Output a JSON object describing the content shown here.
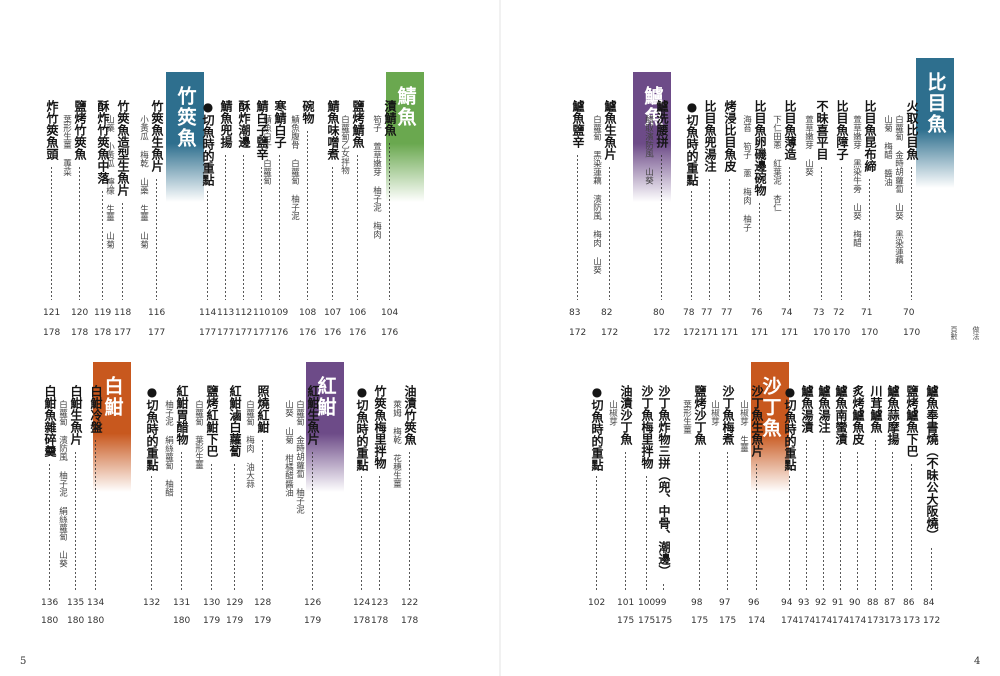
{
  "pages": {
    "right": {
      "folio": "4",
      "header_a": "頁數",
      "header_b": "做法",
      "sections": [
        {
          "title": "比目魚",
          "color": "#2e6f8e",
          "entries": [
            {
              "title": "火取比目魚",
              "sub": [
                "白蘿蔔 金時胡蘿蔔 山葵 黑染蓮藕",
                "山菊 梅醋 醬油"
              ],
              "p1": "70",
              "p2": "170"
            },
            {
              "title": "比目魚昆布締",
              "sub": [
                "萱草嫩芽 黑染牛蒡 山葵 梅醋"
              ],
              "p1": "71",
              "p2": "170"
            },
            {
              "title": "比目魚障子",
              "sub": [],
              "p1": "72",
              "p2": "170"
            },
            {
              "title": "不昧喜平目",
              "sub": [
                "萱草嫩芽 山葵"
              ],
              "p1": "73",
              "p2": "170"
            },
            {
              "title": "比目魚薄造",
              "sub": [
                "下仁田蔥 紅葉泥 杏仁"
              ],
              "p1": "74",
              "p2": "171"
            },
            {
              "title": "比目魚卵磯邊碗物",
              "sub": [
                "海苔 筍子 蔥 梅肉 柚子"
              ],
              "p1": "76",
              "p2": "171"
            },
            {
              "title": "烤浸比目魚皮",
              "sub": [],
              "p1": "77",
              "p2": "171"
            },
            {
              "title": "比目魚兜湯注",
              "sub": [],
              "p1": "77",
              "p2": "171"
            },
            {
              "title": "●切魚時的重點",
              "sub": [],
              "p1": "78",
              "p2": "172"
            }
          ]
        },
        {
          "title": "鱸魚",
          "color": "#6d4b88",
          "entries": [
            {
              "title": "鱸洗腰拼",
              "sub": [
                "醋取濱防風 山葵"
              ],
              "p1": "80",
              "p2": "172"
            },
            {
              "title": "鱸魚生魚片",
              "sub": [
                "白蘿蔔 黑染蓮藕 濱防風 梅肉 山葵"
              ],
              "p1": "82",
              "p2": "172"
            },
            {
              "title": "鱸魚鹽辛",
              "sub": [],
              "p1": "83",
              "p2": "172"
            }
          ]
        },
        {
          "title": "沙丁魚",
          "color": "#c8581e",
          "entries": [
            {
              "title": "鱸魚奉書燒（不昧公大阪燒）",
              "sub": [],
              "p1": "84",
              "p2": "172"
            },
            {
              "title": "鹽烤鱸魚下巴",
              "sub": [],
              "p1": "86",
              "p2": "173"
            },
            {
              "title": "鱸魚蒜摩揚",
              "sub": [],
              "p1": "87",
              "p2": "173"
            },
            {
              "title": "川茸鱸魚",
              "sub": [],
              "p1": "88",
              "p2": "173"
            },
            {
              "title": "炙烤鱸魚皮",
              "sub": [],
              "p1": "90",
              "p2": "174"
            },
            {
              "title": "鱸魚南蠻漬",
              "sub": [],
              "p1": "91",
              "p2": "174"
            },
            {
              "title": "鱸魚湯注",
              "sub": [],
              "p1": "92",
              "p2": "174"
            },
            {
              "title": "鱸魚湯漬",
              "sub": [],
              "p1": "93",
              "p2": "174"
            },
            {
              "title": "●切魚時的重點",
              "sub": [],
              "p1": "94",
              "p2": "174"
            },
            {
              "title": "沙丁魚生魚片",
              "sub": [
                "山椒芽 生薑"
              ],
              "p1": "96",
              "p2": "174"
            },
            {
              "title": "沙丁魚梅煮",
              "sub": [
                "山椒芽"
              ],
              "p1": "97",
              "p2": "175"
            },
            {
              "title": "鹽烤沙丁魚",
              "sub": [
                "葉形生薑"
              ],
              "p1": "98",
              "p2": "175"
            },
            {
              "title": "沙丁魚炸物三拼（兜、中骨、潮邊）",
              "sub": [],
              "p1": "99",
              "p2": "175"
            },
            {
              "title": "沙丁魚梅里拌物",
              "sub": [],
              "p1": "100",
              "p2": "175"
            },
            {
              "title": "油漬沙丁魚",
              "sub": [
                "山椒芽"
              ],
              "p1": "101",
              "p2": "175"
            },
            {
              "title": "●切魚時的重點",
              "sub": [],
              "p1": "102",
              "p2": ""
            }
          ]
        }
      ]
    },
    "left": {
      "folio": "5",
      "sections": [
        {
          "title": "鯖魚",
          "color": "#6aa84f",
          "entries": [
            {
              "title": "漬鯖魚",
              "sub": [
                "筍子 萱草嫩芽 柚子泥 梅肉"
              ],
              "p1": "104",
              "p2": "176"
            },
            {
              "title": "鹽烤鯖魚",
              "sub": [
                "白蘿蔔乙女拌物"
              ],
              "p1": "106",
              "p2": "176"
            },
            {
              "title": "鯖魚味噌煮",
              "sub": [],
              "p1": "107",
              "p2": "176"
            },
            {
              "title": "碗物",
              "sub": [
                "鯖魚腹骨 白蘿蔔 柚子泥"
              ],
              "p1": "108",
              "p2": "176"
            },
            {
              "title": "寒鯖白子",
              "sub": [
                "鯖魚白子 白蘿蔔"
              ],
              "p1": "109",
              "p2": "176"
            },
            {
              "title": "鯖白子鹽辛",
              "sub": [],
              "p1": "110",
              "p2": "177"
            },
            {
              "title": "酥炸潮邊",
              "sub": [],
              "p1": "112",
              "p2": "177"
            },
            {
              "title": "鯖魚兜揚",
              "sub": [],
              "p1": "113",
              "p2": "177"
            },
            {
              "title": "●切魚時的重點",
              "sub": [],
              "p1": "114",
              "p2": "177"
            }
          ]
        },
        {
          "title": "竹筴魚",
          "color": "#2e6f8e",
          "entries": [
            {
              "title": "竹筴魚生魚片",
              "sub": [
                "小黃瓜 梅乾 山藥 生薑 山菊"
              ],
              "p1": "116",
              "p2": "177"
            },
            {
              "title": "竹筴魚造型生魚片",
              "sub": [
                "山藥 小黃瓜 檸檬 生薑 山菊"
              ],
              "p1": "118",
              "p2": "177"
            },
            {
              "title": "酥炸竹筴魚中落",
              "sub": [],
              "p1": "119",
              "p2": "178"
            },
            {
              "title": "鹽烤竹筴魚",
              "sub": [
                "葉形生薑 蓴菜"
              ],
              "p1": "120",
              "p2": "178"
            },
            {
              "title": "炸竹筴魚頭",
              "sub": [],
              "p1": "121",
              "p2": "178"
            }
          ]
        },
        {
          "title": "紅魽",
          "color": "#6d4b88",
          "entries": [
            {
              "title": "油漬竹筴魚",
              "sub": [
                "萊姆 梅乾 花穗生薑"
              ],
              "p1": "122",
              "p2": "178"
            },
            {
              "title": "竹筴魚梅里拌物",
              "sub": [],
              "p1": "123",
              "p2": "178"
            },
            {
              "title": "●切魚時的重點",
              "sub": [],
              "p1": "124",
              "p2": "178"
            },
            {
              "title": "紅魽生魚片",
              "sub": [
                "白蘿蔔 金時胡蘿蔔 柚子泥",
                "山葵 山菊 柑橘醋醬油"
              ],
              "p1": "126",
              "p2": "179"
            },
            {
              "title": "照燒紅魽",
              "sub": [
                "白蘿蔔 梅肉 油大蒜"
              ],
              "p1": "128",
              "p2": "179"
            },
            {
              "title": "紅魽滷白蘿蔔",
              "sub": [],
              "p1": "129",
              "p2": "179"
            },
            {
              "title": "鹽烤紅魽下巴",
              "sub": [
                "白蘿蔔 葉形生薑"
              ],
              "p1": "130",
              "p2": "179"
            },
            {
              "title": "紅魽胃醋物",
              "sub": [
                "柚子泥 絹絲蘿蔔 柚醋"
              ],
              "p1": "131",
              "p2": "180"
            },
            {
              "title": "●切魚時的重點",
              "sub": [],
              "p1": "132",
              "p2": ""
            }
          ]
        },
        {
          "title": "白魽",
          "color": "#c8581e",
          "entries": [
            {
              "title": "白魽冷盤",
              "sub": [],
              "p1": "134",
              "p2": "180"
            },
            {
              "title": "白魽生魚片",
              "sub": [
                "白蘿蔔 濱防風 柚子泥 絹絲蘿蔔 山葵"
              ],
              "p1": "135",
              "p2": "180"
            },
            {
              "title": "白魽魚雜碎羹",
              "sub": [],
              "p1": "136",
              "p2": "180"
            }
          ]
        }
      ]
    }
  }
}
